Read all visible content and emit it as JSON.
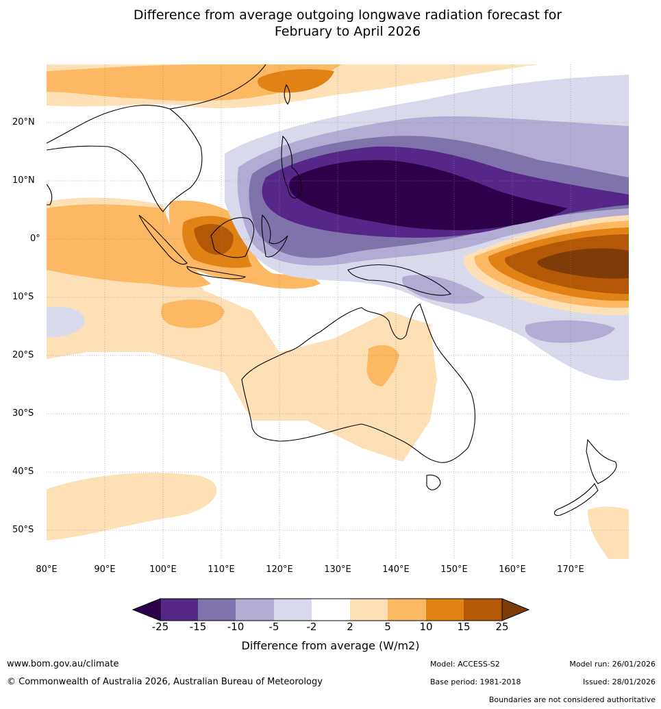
{
  "title": {
    "line1": "Difference from average outgoing longwave radiation forecast for",
    "line2": "February to April 2026"
  },
  "map": {
    "lat_labels": [
      "20°N",
      "10°N",
      "0°",
      "10°S",
      "20°S",
      "30°S",
      "40°S",
      "50°S"
    ],
    "lon_labels": [
      "80°E",
      "90°E",
      "100°E",
      "110°E",
      "120°E",
      "130°E",
      "140°E",
      "150°E",
      "160°E",
      "170°E"
    ]
  },
  "colorbar": {
    "ticks": [
      "-25",
      "-15",
      "-10",
      "-5",
      "-2",
      "2",
      "5",
      "10",
      "15",
      "25"
    ],
    "colors": {
      "n25": "#2d004b",
      "n15": "#542788",
      "n10": "#8073ac",
      "n5": "#b2abd2",
      "n2": "#d8daeb",
      "zero": "#ffffff",
      "p2": "#fee0b6",
      "p5": "#fdb863",
      "p10": "#e08214",
      "p15": "#b35806",
      "p25": "#7f3b08"
    },
    "label": "Difference from average (W/m2)"
  },
  "footer": {
    "website": "www.bom.gov.au/climate",
    "copyright": "© Commonwealth of Australia 2026, Australian Bureau of Meteorology",
    "model": "Model: ACCESS-S2",
    "base_period": "Base period: 1981-2018",
    "model_run": "Model run: 26/01/2026",
    "issued": "Issued: 28/01/2026",
    "disclaimer": "Boundaries are not considered authoritative"
  }
}
